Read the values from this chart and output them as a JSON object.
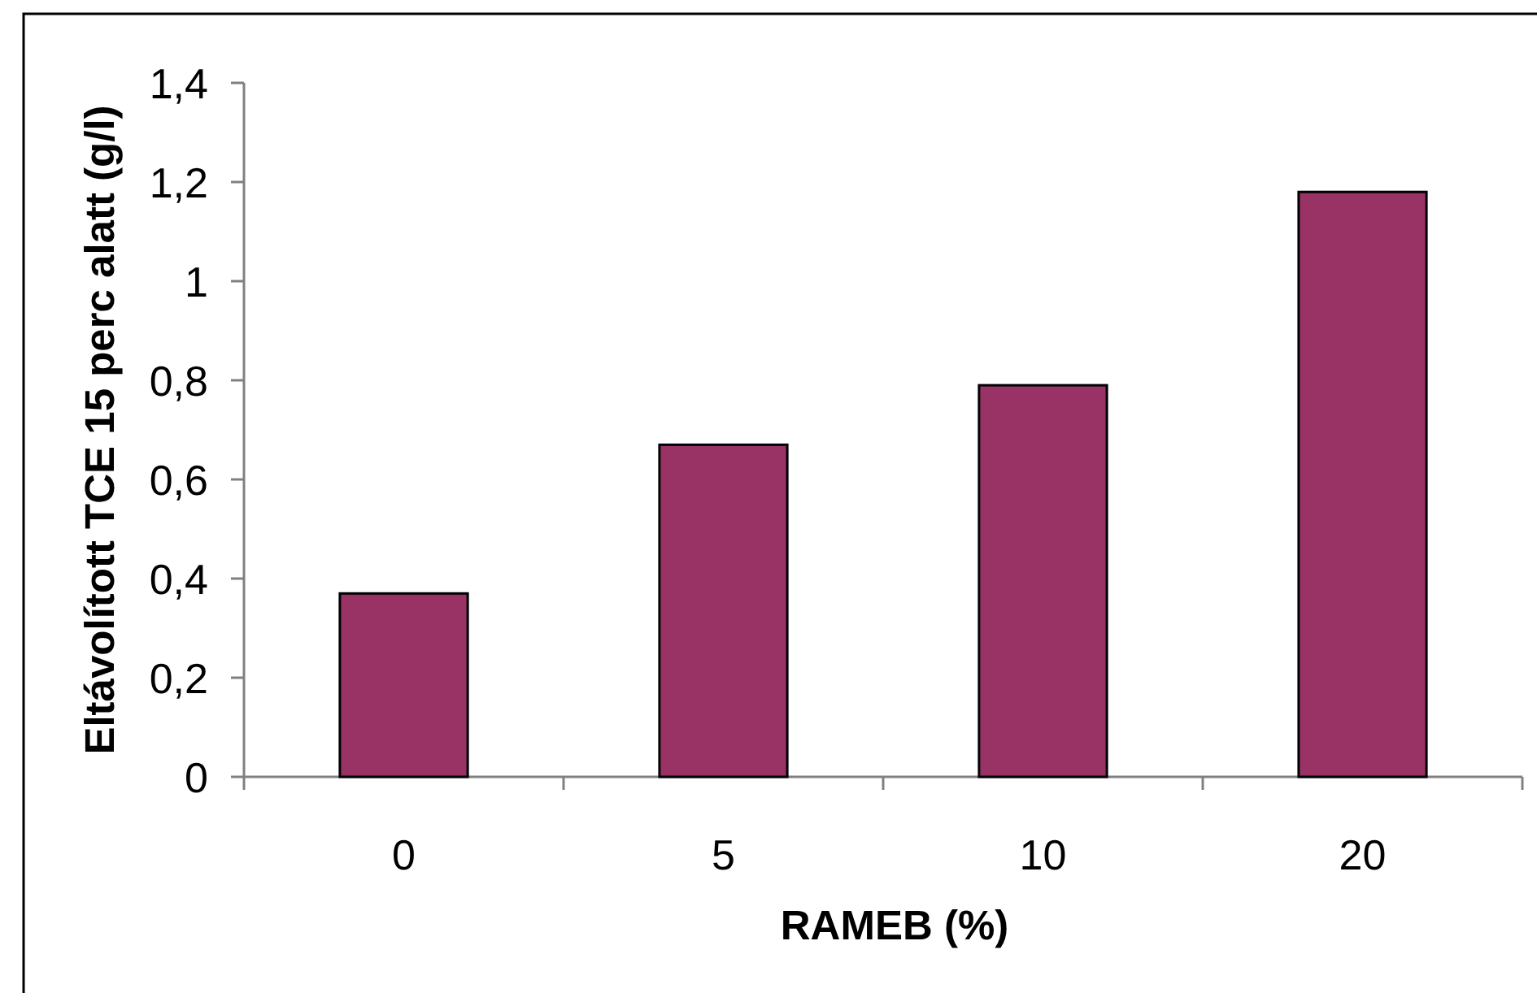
{
  "chart_data": {
    "type": "bar",
    "xlabel": "RAMEB (%)",
    "ylabel": "Eltávolított TCE 15 perc alatt (g/l)",
    "categories": [
      "0",
      "5",
      "10",
      "20"
    ],
    "values": [
      0.37,
      0.67,
      0.79,
      1.18
    ],
    "color": "#993366",
    "ylim": [
      0,
      1.4
    ],
    "yticks": [
      0,
      {
        "value": 0.2,
        "label": "0,2"
      },
      {
        "value": 0.4,
        "label": "0,4"
      },
      {
        "value": 0.6,
        "label": "0,6"
      },
      {
        "value": 0.8,
        "label": "0,8"
      },
      1,
      {
        "value": 1.2,
        "label": "1,2"
      },
      {
        "value": 1.4,
        "label": "1,4"
      }
    ]
  }
}
